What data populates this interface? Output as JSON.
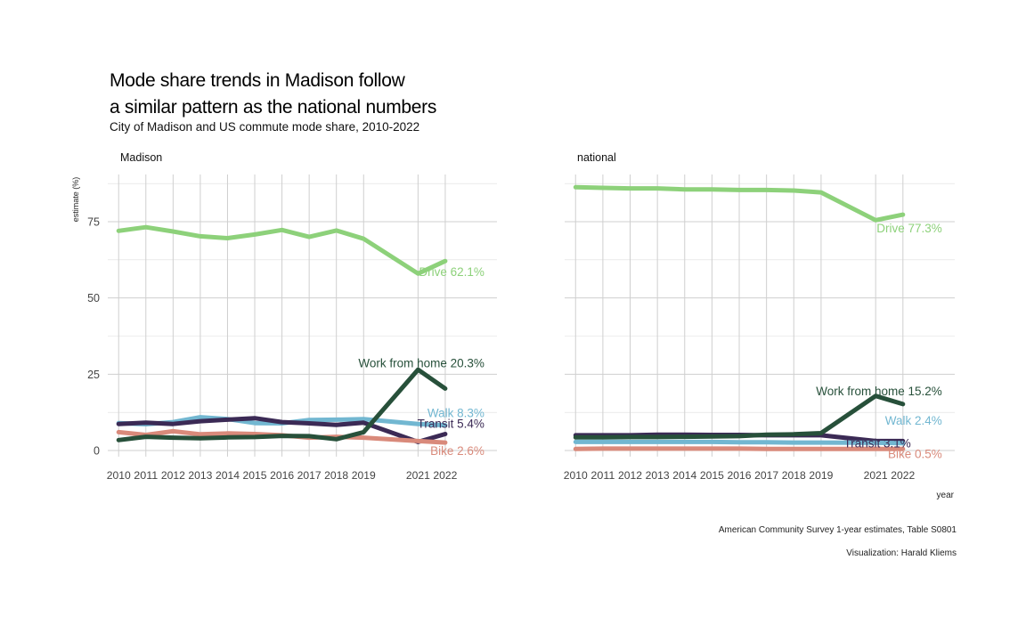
{
  "title_line1": "Mode share trends in Madison follow",
  "title_line2": "a similar pattern as the national numbers",
  "subtitle": "City of Madison and US commute mode share, 2010-2022",
  "caption_source": "American Community Survey 1-year estimates, Table S0801",
  "caption_credit": "Visualization: Harald Kliems",
  "chart_data": {
    "type": "line",
    "ylabel": "estimate (%)",
    "xlabel": "year",
    "ylim": [
      0,
      90
    ],
    "yticks": [
      0,
      25,
      50,
      75
    ],
    "x": [
      2010,
      2011,
      2012,
      2013,
      2014,
      2015,
      2016,
      2017,
      2018,
      2019,
      2021,
      2022
    ],
    "grid": true,
    "colors": {
      "Drive": "#8dd17a",
      "Work from home": "#27503a",
      "Walk": "#72b7d1",
      "Transit": "#3b2a55",
      "Bike": "#d98a7b"
    },
    "panels": [
      {
        "name": "Madison",
        "series": [
          {
            "name": "Drive",
            "label": "Drive 62.1%",
            "values": [
              72.0,
              73.2,
              71.8,
              70.2,
              69.6,
              70.8,
              72.3,
              70.0,
              72.1,
              69.4,
              58.0,
              62.1
            ]
          },
          {
            "name": "Walk",
            "label": "Walk 8.3%",
            "values": [
              9.0,
              8.6,
              9.3,
              10.9,
              10.3,
              9.0,
              8.9,
              10.0,
              10.1,
              10.3,
              8.7,
              8.3
            ]
          },
          {
            "name": "Transit",
            "label": "Transit 5.4%",
            "values": [
              8.7,
              9.1,
              8.7,
              9.6,
              10.1,
              10.6,
              9.3,
              8.9,
              8.4,
              9.1,
              2.8,
              5.4
            ]
          },
          {
            "name": "Bike",
            "label": "Bike 2.6%",
            "values": [
              6.0,
              5.1,
              6.3,
              5.3,
              5.6,
              5.4,
              5.0,
              4.2,
              4.5,
              4.2,
              3.1,
              2.6
            ]
          },
          {
            "name": "Work from home",
            "label": "Work from home 20.3%",
            "values": [
              3.4,
              4.5,
              4.2,
              4.0,
              4.3,
              4.4,
              4.8,
              4.7,
              3.7,
              6.0,
              26.5,
              20.3
            ]
          }
        ]
      },
      {
        "name": "national",
        "series": [
          {
            "name": "Drive",
            "label": "Drive 77.3%",
            "values": [
              86.3,
              86.1,
              85.9,
              85.9,
              85.6,
              85.6,
              85.4,
              85.4,
              85.2,
              84.6,
              75.5,
              77.3
            ]
          },
          {
            "name": "Transit",
            "label": "Transit 3.1%",
            "values": [
              5.0,
              5.0,
              5.0,
              5.2,
              5.2,
              5.1,
              5.1,
              5.0,
              5.0,
              5.0,
              3.1,
              3.1
            ]
          },
          {
            "name": "Work from home",
            "label": "Work from home 15.2%",
            "values": [
              4.3,
              4.3,
              4.4,
              4.4,
              4.5,
              4.6,
              4.7,
              5.2,
              5.3,
              5.7,
              17.9,
              15.2
            ]
          },
          {
            "name": "Walk",
            "label": "Walk 2.4%",
            "values": [
              2.8,
              2.8,
              2.8,
              2.8,
              2.8,
              2.8,
              2.7,
              2.7,
              2.6,
              2.6,
              2.5,
              2.4
            ]
          },
          {
            "name": "Bike",
            "label": "Bike 0.5%",
            "values": [
              0.5,
              0.6,
              0.6,
              0.6,
              0.6,
              0.6,
              0.6,
              0.5,
              0.5,
              0.5,
              0.5,
              0.5
            ]
          }
        ]
      }
    ]
  }
}
